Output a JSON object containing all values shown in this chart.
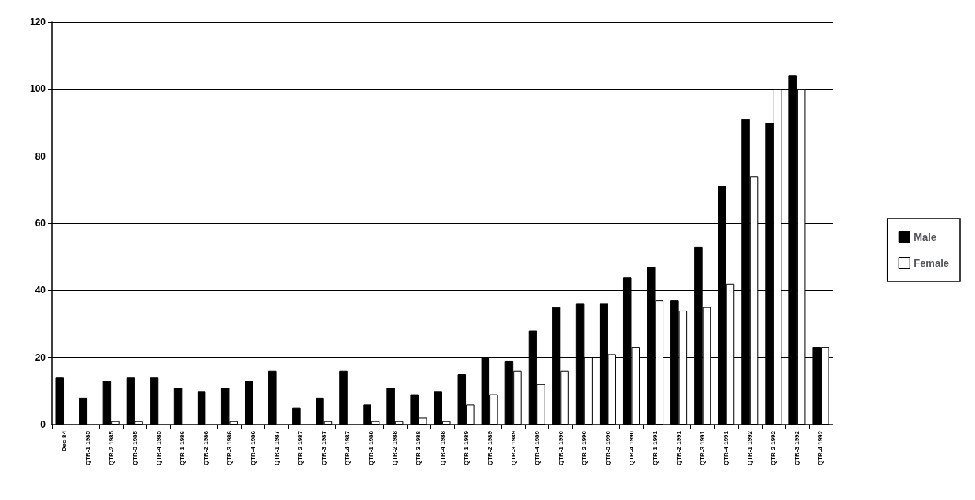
{
  "chart_data": {
    "type": "bar",
    "categories": [
      "-Dec-84",
      "QTR-1 1985",
      "QTR-2 1985",
      "QTR-3 1985",
      "QTR-4 1985",
      "QTR-1 1986",
      "QTR-2 1986",
      "QTR-3 1986",
      "QTR-4 1986",
      "QTR-1 1987",
      "QTR-2 1987",
      "QTR-3 1987",
      "QTR-4 1987",
      "QTR-1 1988",
      "QTR-2 1988",
      "QTR-3 1988",
      "QTR-4 1988",
      "QTR-1 1989",
      "QTR-2 1989",
      "QTR-3 1989",
      "QTR-4 1989",
      "QTR-1 1990",
      "QTR-2 1990",
      "QTR-3 1990",
      "QTR-4 1990",
      "QTR-1 1991",
      "QTR-2 1991",
      "QTR-3 1991",
      "QTR-4 1991",
      "QTR-1 1992",
      "QTR-2 1992",
      "QTR-3 1992",
      "QTR-4 1992"
    ],
    "series": [
      {
        "name": "Male",
        "color": "#000000",
        "values": [
          14,
          8,
          13,
          14,
          14,
          11,
          10,
          11,
          13,
          16,
          5,
          8,
          16,
          6,
          11,
          9,
          10,
          15,
          20,
          19,
          28,
          35,
          36,
          36,
          44,
          47,
          37,
          53,
          71,
          91,
          90,
          104,
          23
        ]
      },
      {
        "name": "Female",
        "color": "#ffffff",
        "values": [
          0,
          0,
          1,
          1,
          0,
          0,
          0,
          1,
          0,
          0,
          0,
          1,
          0,
          1,
          1,
          2,
          1,
          6,
          9,
          16,
          12,
          16,
          20,
          21,
          23,
          37,
          34,
          35,
          42,
          74,
          100,
          100,
          23
        ]
      }
    ],
    "ylim": [
      0,
      120
    ],
    "yticks": [
      0,
      20,
      40,
      60,
      80,
      100,
      120
    ],
    "grid": "y",
    "legend": "right"
  }
}
